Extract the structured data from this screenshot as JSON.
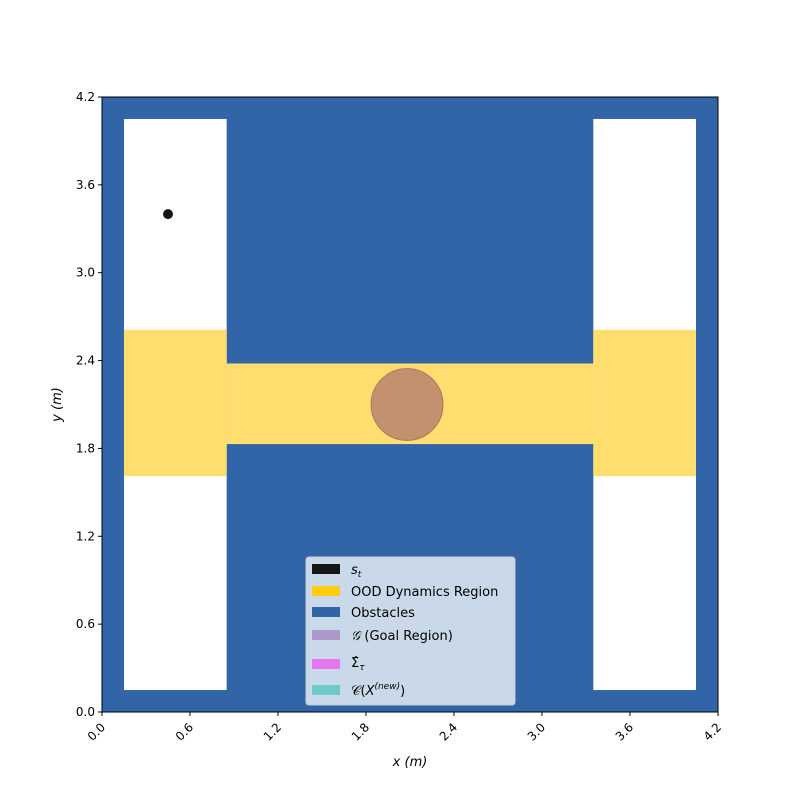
{
  "chart_data": {
    "type": "map",
    "xlabel": "x (m)",
    "ylabel": "y (m)",
    "xlim": [
      0.0,
      4.2
    ],
    "ylim": [
      0.0,
      4.2
    ],
    "xticks": [
      "0.0",
      "0.6",
      "1.2",
      "1.8",
      "2.4",
      "3.0",
      "3.6",
      "4.2"
    ],
    "yticks": [
      "0.0",
      "0.6",
      "1.2",
      "1.8",
      "2.4",
      "3.0",
      "3.6",
      "4.2"
    ],
    "grid": false,
    "legend_position": "lower-center",
    "colors": {
      "obstacles": "#3165a8",
      "ood": "#ffdd6e",
      "goal": "#c4916f",
      "goal_edge": "#a67a63",
      "state": "#151515",
      "legend_state": "#151515",
      "legend_ood": "#fecb0d",
      "legend_obstacles": "#3165a8",
      "legend_goal": "#ae98c7",
      "legend_sigma": "#e576f2",
      "legend_conformal": "#6ccac8"
    },
    "free_regions": [
      {
        "x": [
          0.15,
          0.85
        ],
        "y": [
          0.15,
          4.05
        ]
      },
      {
        "x": [
          3.35,
          4.05
        ],
        "y": [
          0.15,
          4.05
        ]
      },
      {
        "x": [
          0.85,
          3.35
        ],
        "y": [
          1.83,
          2.38
        ]
      }
    ],
    "ood_regions": [
      {
        "x": [
          0.15,
          0.85
        ],
        "y": [
          1.61,
          2.61
        ]
      },
      {
        "x": [
          0.85,
          3.35
        ],
        "y": [
          1.83,
          2.38
        ]
      },
      {
        "x": [
          3.35,
          4.05
        ],
        "y": [
          1.61,
          2.61
        ]
      }
    ],
    "goal": {
      "center": [
        2.08,
        2.1
      ],
      "radius": 0.245
    },
    "state": {
      "x": 0.45,
      "y": 3.4
    },
    "legend": [
      {
        "key": "state",
        "label": "s_t"
      },
      {
        "key": "ood",
        "label": "OOD Dynamics Region"
      },
      {
        "key": "obstacles",
        "label": "Obstacles"
      },
      {
        "key": "goal",
        "label": "(Goal Region)"
      },
      {
        "key": "sigma",
        "label": "Σ̂_τ"
      },
      {
        "key": "conformal",
        "label": "C(X^(new))"
      }
    ]
  }
}
